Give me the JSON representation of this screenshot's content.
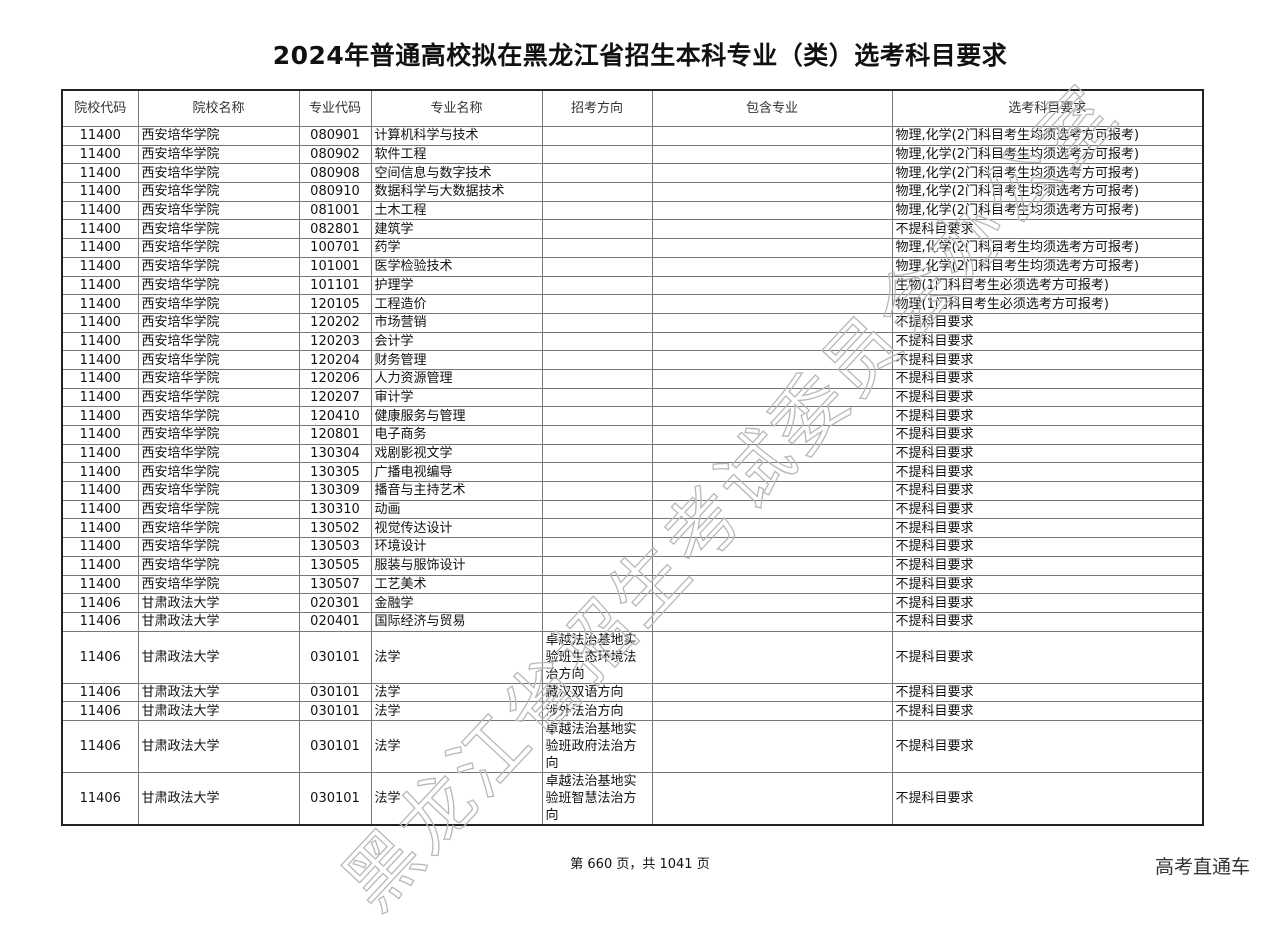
{
  "title": "2024年普通高校拟在黑龙江省招生本科专业（类）选考科目要求",
  "columns": [
    "院校代码",
    "院校名称",
    "专业代码",
    "专业名称",
    "招考方向",
    "包含专业",
    "选考科目要求"
  ],
  "rows": [
    [
      "11400",
      "西安培华学院",
      "080901",
      "计算机科学与技术",
      "",
      "",
      "物理,化学(2门科目考生均须选考方可报考)"
    ],
    [
      "11400",
      "西安培华学院",
      "080902",
      "软件工程",
      "",
      "",
      "物理,化学(2门科目考生均须选考方可报考)"
    ],
    [
      "11400",
      "西安培华学院",
      "080908",
      "空间信息与数字技术",
      "",
      "",
      "物理,化学(2门科目考生均须选考方可报考)"
    ],
    [
      "11400",
      "西安培华学院",
      "080910",
      "数据科学与大数据技术",
      "",
      "",
      "物理,化学(2门科目考生均须选考方可报考)"
    ],
    [
      "11400",
      "西安培华学院",
      "081001",
      "土木工程",
      "",
      "",
      "物理,化学(2门科目考生均须选考方可报考)"
    ],
    [
      "11400",
      "西安培华学院",
      "082801",
      "建筑学",
      "",
      "",
      "不提科目要求"
    ],
    [
      "11400",
      "西安培华学院",
      "100701",
      "药学",
      "",
      "",
      "物理,化学(2门科目考生均须选考方可报考)"
    ],
    [
      "11400",
      "西安培华学院",
      "101001",
      "医学检验技术",
      "",
      "",
      "物理,化学(2门科目考生均须选考方可报考)"
    ],
    [
      "11400",
      "西安培华学院",
      "101101",
      "护理学",
      "",
      "",
      "生物(1门科目考生必须选考方可报考)"
    ],
    [
      "11400",
      "西安培华学院",
      "120105",
      "工程造价",
      "",
      "",
      "物理(1门科目考生必须选考方可报考)"
    ],
    [
      "11400",
      "西安培华学院",
      "120202",
      "市场营销",
      "",
      "",
      "不提科目要求"
    ],
    [
      "11400",
      "西安培华学院",
      "120203",
      "会计学",
      "",
      "",
      "不提科目要求"
    ],
    [
      "11400",
      "西安培华学院",
      "120204",
      "财务管理",
      "",
      "",
      "不提科目要求"
    ],
    [
      "11400",
      "西安培华学院",
      "120206",
      "人力资源管理",
      "",
      "",
      "不提科目要求"
    ],
    [
      "11400",
      "西安培华学院",
      "120207",
      "审计学",
      "",
      "",
      "不提科目要求"
    ],
    [
      "11400",
      "西安培华学院",
      "120410",
      "健康服务与管理",
      "",
      "",
      "不提科目要求"
    ],
    [
      "11400",
      "西安培华学院",
      "120801",
      "电子商务",
      "",
      "",
      "不提科目要求"
    ],
    [
      "11400",
      "西安培华学院",
      "130304",
      "戏剧影视文学",
      "",
      "",
      "不提科目要求"
    ],
    [
      "11400",
      "西安培华学院",
      "130305",
      "广播电视编导",
      "",
      "",
      "不提科目要求"
    ],
    [
      "11400",
      "西安培华学院",
      "130309",
      "播音与主持艺术",
      "",
      "",
      "不提科目要求"
    ],
    [
      "11400",
      "西安培华学院",
      "130310",
      "动画",
      "",
      "",
      "不提科目要求"
    ],
    [
      "11400",
      "西安培华学院",
      "130502",
      "视觉传达设计",
      "",
      "",
      "不提科目要求"
    ],
    [
      "11400",
      "西安培华学院",
      "130503",
      "环境设计",
      "",
      "",
      "不提科目要求"
    ],
    [
      "11400",
      "西安培华学院",
      "130505",
      "服装与服饰设计",
      "",
      "",
      "不提科目要求"
    ],
    [
      "11400",
      "西安培华学院",
      "130507",
      "工艺美术",
      "",
      "",
      "不提科目要求"
    ],
    [
      "11406",
      "甘肃政法大学",
      "020301",
      "金融学",
      "",
      "",
      "不提科目要求"
    ],
    [
      "11406",
      "甘肃政法大学",
      "020401",
      "国际经济与贸易",
      "",
      "",
      "不提科目要求"
    ],
    [
      "11406",
      "甘肃政法大学",
      "030101",
      "法学",
      "卓越法治基地实验班生态环境法治方向",
      "",
      "不提科目要求"
    ],
    [
      "11406",
      "甘肃政法大学",
      "030101",
      "法学",
      "藏汉双语方向",
      "",
      "不提科目要求"
    ],
    [
      "11406",
      "甘肃政法大学",
      "030101",
      "法学",
      "涉外法治方向",
      "",
      "不提科目要求"
    ],
    [
      "11406",
      "甘肃政法大学",
      "030101",
      "法学",
      "卓越法治基地实验班政府法治方向",
      "",
      "不提科目要求"
    ],
    [
      "11406",
      "甘肃政法大学",
      "030101",
      "法学",
      "卓越法治基地实验班智慧法治方向",
      "",
      "不提科目要求"
    ]
  ],
  "watermark": "黑龙江省招生考试委员会办公室",
  "footer": "第 660 页，共 1041 页",
  "brand": "高考直通车"
}
